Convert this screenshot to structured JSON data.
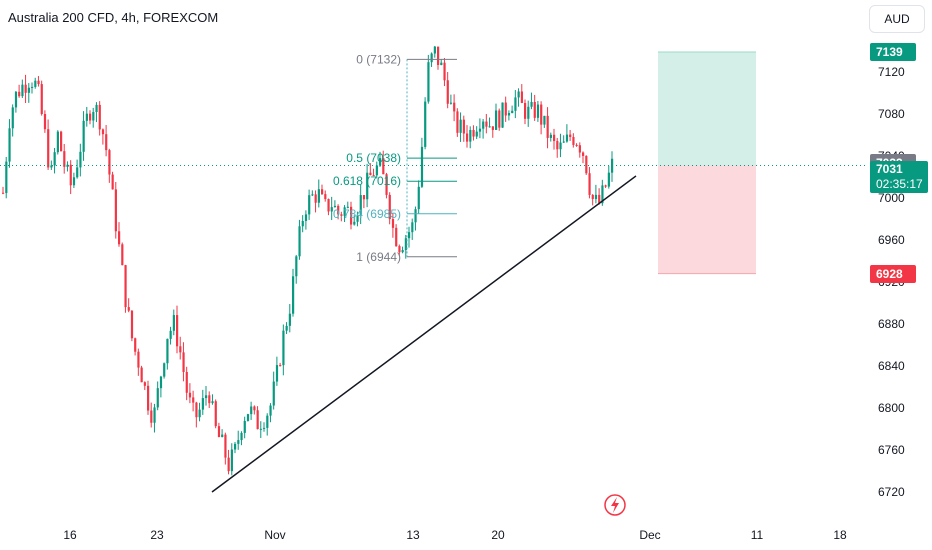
{
  "header": {
    "title": "Australia 200 CFD, 4h, FOREXCOM",
    "currency": "AUD"
  },
  "price_tags": {
    "target": "7139",
    "fib_high": "7033",
    "current": "7031",
    "countdown": "02:35:17",
    "stop": "6928"
  },
  "colors": {
    "up": "#089981",
    "down": "#f23645",
    "target_fill": "#d3efe8",
    "stop_fill": "#fbd9dc",
    "current_line": "#089981",
    "trendline": "#131722",
    "fib_teal": "#4fb3bf",
    "fib_grey": "#787b86",
    "fib_green": "#089981"
  },
  "chart_data": {
    "type": "candlestick",
    "title": "Australia 200 CFD, 4h, FOREXCOM",
    "ylim": [
      6700,
      7160
    ],
    "y_ticks": [
      "7120",
      "7080",
      "7040",
      "7000",
      "6960",
      "6920",
      "6880",
      "6840",
      "6800",
      "6760",
      "6720"
    ],
    "x_ticks": [
      "16",
      "23",
      "Nov",
      "13",
      "20",
      "Dec",
      "11",
      "18"
    ],
    "grid": false,
    "current_price": 7031,
    "path_close": [
      7005,
      7080,
      7100,
      7108,
      7115,
      7105,
      7065,
      7020,
      7060,
      7030,
      7010,
      7040,
      7070,
      7090,
      7080,
      7050,
      7000,
      6950,
      6900,
      6860,
      6840,
      6810,
      6790,
      6830,
      6870,
      6880,
      6850,
      6810,
      6790,
      6800,
      6820,
      6780,
      6765,
      6745,
      6760,
      6790,
      6800,
      6785,
      6790,
      6800,
      6830,
      6870,
      6900,
      6950,
      6990,
      7000,
      7005,
      6990,
      6995,
      6985,
      6990,
      6985,
      6995,
      7010,
      7025,
      7030,
      7010,
      6970,
      6955,
      6965,
      6975,
      7030,
      7120,
      7140,
      7125,
      7100,
      7070,
      7065,
      7060,
      7070,
      7080,
      7070,
      7075,
      7080,
      7090,
      7095,
      7085,
      7080,
      7085,
      7070,
      7055,
      7045,
      7050,
      7060,
      7055,
      7040,
      7000,
      6993,
      7010,
      7031
    ],
    "fib": {
      "levels": [
        {
          "label": "0 (7132)",
          "value": 7132
        },
        {
          "label": "0.5 (7038)",
          "value": 7038
        },
        {
          "label": "0.618 (7016)",
          "value": 7016
        },
        {
          "label": "0.784 (6985)",
          "value": 6985
        },
        {
          "label": "1 (6944)",
          "value": 6944
        }
      ]
    },
    "position": {
      "target": 7139,
      "entry": 7031,
      "stop": 6928
    },
    "trendline": {
      "from": {
        "date": "Oct 27",
        "value": 6720
      },
      "to": {
        "date": "Nov 30",
        "value": 7021
      }
    },
    "events": [
      {
        "icon": "lightning-icon",
        "date": "Nov 28"
      }
    ]
  }
}
